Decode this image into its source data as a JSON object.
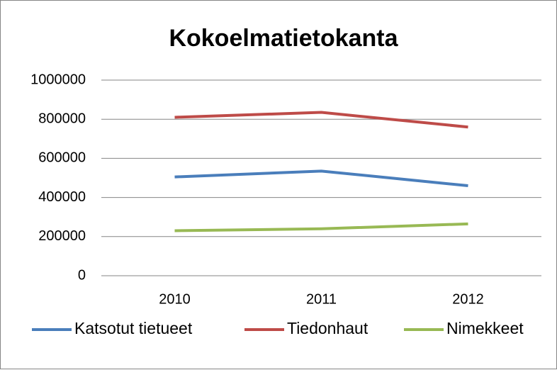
{
  "chart_data": {
    "type": "line",
    "title": "Kokoelmatietokanta",
    "categories": [
      "2010",
      "2011",
      "2012"
    ],
    "series": [
      {
        "name": "Katsotut tietueet",
        "color": "#4a7ebb",
        "values": [
          505000,
          535000,
          460000
        ]
      },
      {
        "name": "Tiedonhaut",
        "color": "#be4b48",
        "values": [
          810000,
          835000,
          760000
        ]
      },
      {
        "name": "Nimekkeet",
        "color": "#98b954",
        "values": [
          230000,
          240000,
          265000
        ]
      }
    ],
    "ylim": [
      0,
      1000000
    ],
    "yticks": [
      0,
      200000,
      400000,
      600000,
      800000,
      1000000
    ],
    "grid": true,
    "legend": "bottom"
  }
}
